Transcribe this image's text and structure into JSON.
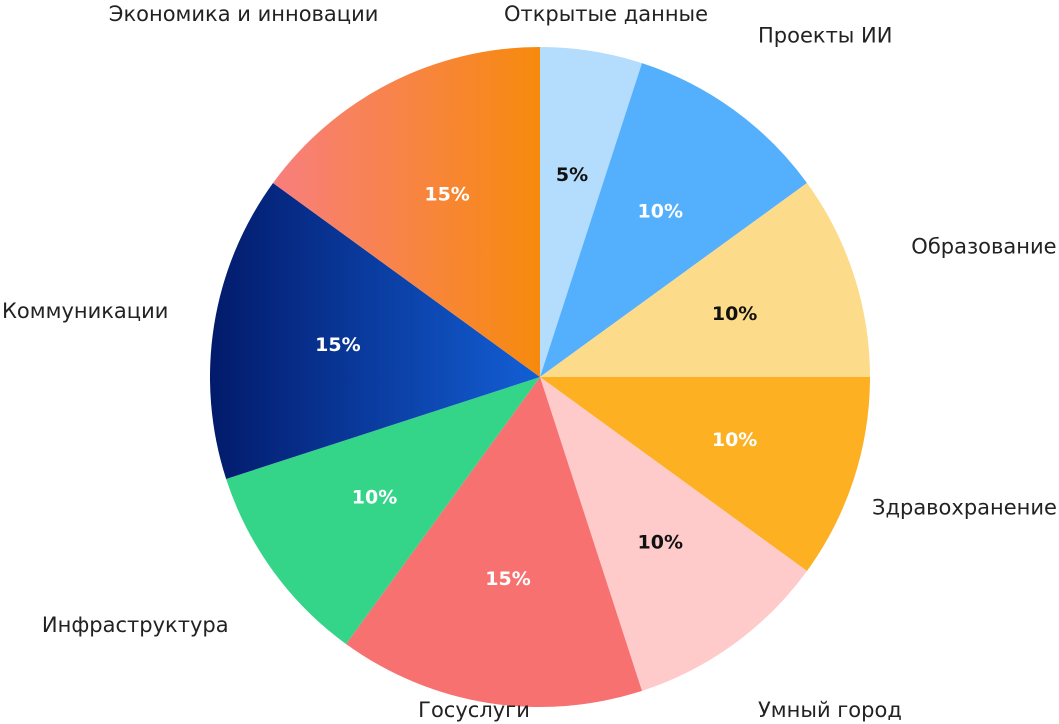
{
  "chart_data": {
    "type": "pie",
    "title": "",
    "start_angle_deg": 90,
    "direction": "clockwise",
    "slices": [
      {
        "label": "Открытые данные",
        "value": 5,
        "display": "5%",
        "color": "#b3dcfd",
        "label_color": "#111111"
      },
      {
        "label": "Проекты ИИ",
        "value": 10,
        "display": "10%",
        "color": "#54b0fc",
        "label_color": "#ffffff"
      },
      {
        "label": "Образование",
        "value": 10,
        "display": "10%",
        "color": "#fcdc8a",
        "label_color": "#111111"
      },
      {
        "label": "Здравохранение",
        "value": 10,
        "display": "10%",
        "color": "#fcb022",
        "label_color": "#ffffff"
      },
      {
        "label": "Умный город",
        "value": 10,
        "display": "10%",
        "color": "#fecaca",
        "label_color": "#111111"
      },
      {
        "label": "Госуслуги",
        "value": 15,
        "display": "15%",
        "color": "#f87171",
        "label_color": "#ffffff"
      },
      {
        "label": "Инфраструктура",
        "value": 10,
        "display": "10%",
        "color": "#34d489",
        "label_color": "#ffffff"
      },
      {
        "label": "Коммуникации",
        "value": 15,
        "display": "15%",
        "color": "#0d4dba",
        "gradient": [
          "#021a6b",
          "#135fd6"
        ],
        "label_color": "#ffffff"
      },
      {
        "label": "Экономика и инновации",
        "value": 15,
        "display": "15%",
        "color": "#f58a2c",
        "gradient": [
          "#f87e7e",
          "#f78a0c"
        ],
        "label_color": "#ffffff"
      }
    ]
  }
}
